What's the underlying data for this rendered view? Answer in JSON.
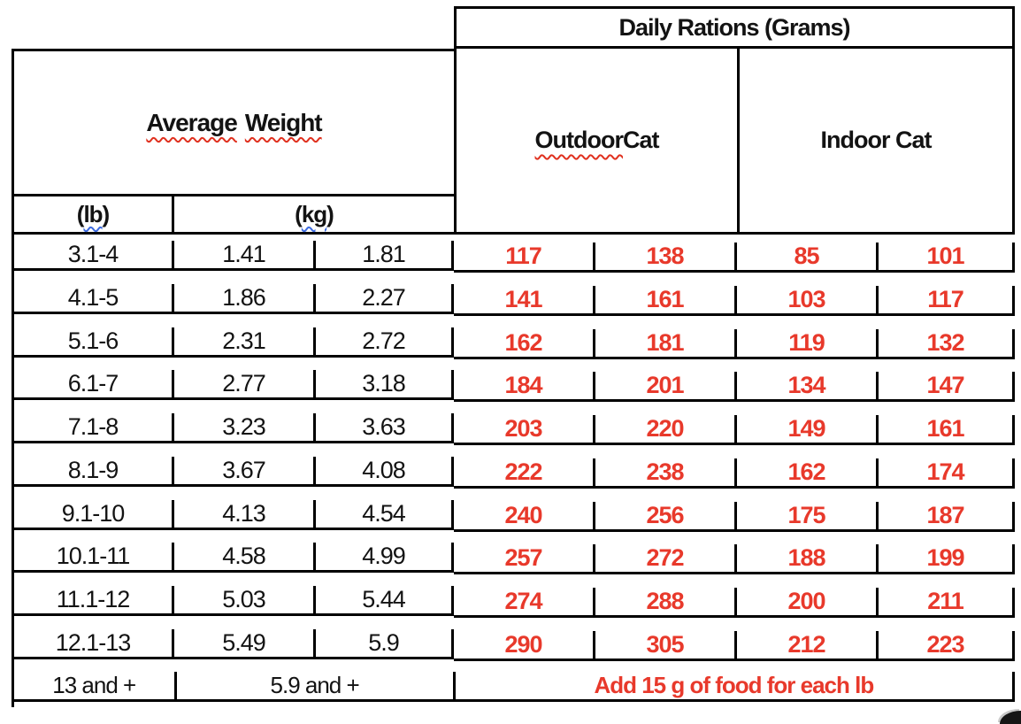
{
  "header": {
    "daily_rations": "Daily Rations (Grams)",
    "average_weight_word1": "Average",
    "average_weight_word2": "Weight",
    "outdoor_part1": "Outdoor",
    "outdoor_part2": " Cat",
    "indoor": "Indoor Cat",
    "lb_open": "(",
    "lb_inner": "lb",
    "lb_close": ")",
    "kg_open": "(",
    "kg_inner": "kg",
    "kg_close": ")"
  },
  "colors": {
    "value_red": "#e8392b",
    "squiggle_red": "#e0301e",
    "squiggle_blue": "#3d6be0",
    "border_black": "#000000"
  },
  "table": {
    "column_keys": [
      "lb",
      "kg_low",
      "kg_high",
      "outdoor_low",
      "outdoor_high",
      "indoor_low",
      "indoor_high"
    ],
    "rows": [
      {
        "lb": "3.1-4",
        "kg_low": "1.41",
        "kg_high": "1.81",
        "outdoor_low": "117",
        "outdoor_high": "138",
        "indoor_low": "85",
        "indoor_high": "101"
      },
      {
        "lb": "4.1-5",
        "kg_low": "1.86",
        "kg_high": "2.27",
        "outdoor_low": "141",
        "outdoor_high": "161",
        "indoor_low": "103",
        "indoor_high": "117"
      },
      {
        "lb": "5.1-6",
        "kg_low": "2.31",
        "kg_high": "2.72",
        "outdoor_low": "162",
        "outdoor_high": "181",
        "indoor_low": "119",
        "indoor_high": "132"
      },
      {
        "lb": "6.1-7",
        "kg_low": "2.77",
        "kg_high": "3.18",
        "outdoor_low": "184",
        "outdoor_high": "201",
        "indoor_low": "134",
        "indoor_high": "147"
      },
      {
        "lb": "7.1-8",
        "kg_low": "3.23",
        "kg_high": "3.63",
        "outdoor_low": "203",
        "outdoor_high": "220",
        "indoor_low": "149",
        "indoor_high": "161"
      },
      {
        "lb": "8.1-9",
        "kg_low": "3.67",
        "kg_high": "4.08",
        "outdoor_low": "222",
        "outdoor_high": "238",
        "indoor_low": "162",
        "indoor_high": "174"
      },
      {
        "lb": "9.1-10",
        "kg_low": "4.13",
        "kg_high": "4.54",
        "outdoor_low": "240",
        "outdoor_high": "256",
        "indoor_low": "175",
        "indoor_high": "187"
      },
      {
        "lb": "10.1-11",
        "kg_low": "4.58",
        "kg_high": "4.99",
        "outdoor_low": "257",
        "outdoor_high": "272",
        "indoor_low": "188",
        "indoor_high": "199"
      },
      {
        "lb": "11.1-12",
        "kg_low": "5.03",
        "kg_high": "5.44",
        "outdoor_low": "274",
        "outdoor_high": "288",
        "indoor_low": "200",
        "indoor_high": "211"
      },
      {
        "lb": "12.1-13",
        "kg_low": "5.49",
        "kg_high": "5.9",
        "outdoor_low": "290",
        "outdoor_high": "305",
        "indoor_low": "212",
        "indoor_high": "223"
      }
    ],
    "footer": {
      "lb": "13 and +",
      "kg": "5.9 and +",
      "note": "Add 15 g of food for each lb"
    }
  }
}
